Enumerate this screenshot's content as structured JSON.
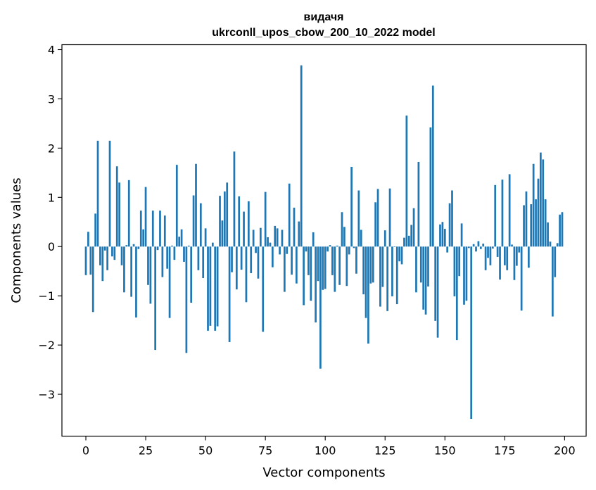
{
  "chart_data": {
    "type": "bar",
    "title_line1": "видачя",
    "title_line2": "ukrconll_upos_cbow_200_10_2022 model",
    "xlabel": "Vector components",
    "ylabel": "Components values",
    "xlim": [
      -10,
      209
    ],
    "ylim": [
      -3.85,
      4.1
    ],
    "xticks": [
      0,
      25,
      50,
      75,
      100,
      125,
      150,
      175,
      200
    ],
    "yticks": [
      -3,
      -2,
      -1,
      0,
      1,
      2,
      3,
      4
    ],
    "bar_color": "#1f77b4",
    "grid": false,
    "legend": "none",
    "values": [
      -0.58,
      0.3,
      -0.57,
      -1.33,
      0.67,
      2.15,
      -0.38,
      -0.7,
      -0.08,
      -0.48,
      2.15,
      -0.2,
      -0.27,
      1.63,
      1.3,
      -0.38,
      -0.93,
      0.03,
      1.35,
      -1.02,
      0.05,
      -1.44,
      -0.05,
      0.73,
      0.35,
      1.21,
      -0.78,
      -1.16,
      0.73,
      -2.1,
      -0.07,
      0.73,
      -0.62,
      0.63,
      -0.45,
      -1.45,
      0.02,
      -0.27,
      1.66,
      0.2,
      0.35,
      -0.31,
      -2.16,
      0.02,
      -1.14,
      1.04,
      1.68,
      -0.48,
      0.88,
      -0.64,
      0.37,
      -1.71,
      -1.61,
      0.08,
      -1.71,
      -1.62,
      1.03,
      0.53,
      1.12,
      1.3,
      -1.94,
      -0.52,
      1.93,
      -0.87,
      1.02,
      -0.47,
      0.71,
      -1.13,
      0.92,
      -0.54,
      0.34,
      -0.13,
      -0.65,
      0.38,
      -1.73,
      1.11,
      0.19,
      0.08,
      -0.42,
      0.42,
      0.37,
      -0.16,
      0.34,
      -0.92,
      -0.15,
      1.28,
      -0.57,
      0.79,
      -0.75,
      0.51,
      3.68,
      -1.19,
      -0.1,
      -0.58,
      -1.1,
      0.29,
      -1.54,
      -0.7,
      -2.48,
      -0.88,
      -0.86,
      -0.1,
      0.03,
      -0.58,
      -0.92,
      0.02,
      -0.78,
      0.7,
      0.4,
      -0.8,
      -0.16,
      1.62,
      -0.03,
      -0.55,
      1.14,
      0.34,
      -0.97,
      -1.45,
      -1.97,
      -0.75,
      -0.73,
      0.9,
      1.17,
      -1.22,
      -0.82,
      0.33,
      -1.31,
      1.18,
      -1.01,
      -0.01,
      -1.17,
      -0.3,
      -0.36,
      0.18,
      2.66,
      0.22,
      0.44,
      0.78,
      -0.93,
      1.72,
      -0.73,
      -1.28,
      -1.38,
      -0.81,
      2.42,
      3.27,
      -1.51,
      -1.85,
      0.45,
      0.5,
      0.36,
      -0.12,
      0.88,
      1.14,
      -1.01,
      -1.9,
      -0.6,
      0.47,
      -1.18,
      -1.1,
      -0.03,
      -3.5,
      0.05,
      -0.1,
      0.11,
      -0.05,
      0.06,
      -0.48,
      -0.23,
      -0.38,
      -0.04,
      1.25,
      -0.21,
      -0.67,
      1.36,
      -0.38,
      -0.48,
      1.47,
      0.04,
      -0.68,
      -0.39,
      -0.12,
      -1.3,
      0.84,
      1.12,
      -0.43,
      0.86,
      1.68,
      0.96,
      1.38,
      1.91,
      1.77,
      0.96,
      0.49,
      0.1,
      -1.42,
      -0.62,
      0.07,
      0.65,
      0.7
    ]
  }
}
